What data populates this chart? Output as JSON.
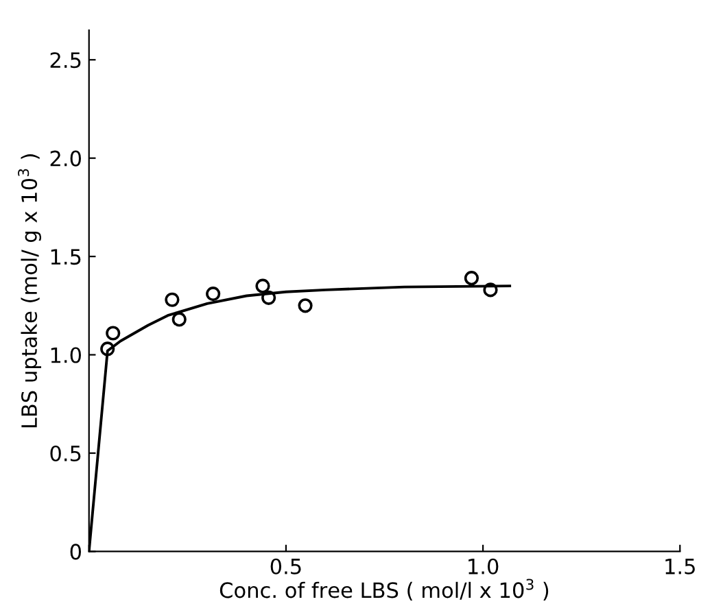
{
  "chart_data": {
    "type": "scatter",
    "xlabel": "Conc. of free LBS ( mol/l x 10$^{3}$ )",
    "ylabel": "LBS uptake (mol/ g x 10$^{3}$ )",
    "series": [
      {
        "color": "#000000",
        "marker": "circle",
        "x": [
          0.047,
          0.061,
          0.211,
          0.229,
          0.315,
          0.441,
          0.456,
          0.549,
          0.971,
          1.019
        ],
        "values": [
          1.03,
          1.11,
          1.28,
          1.18,
          1.31,
          1.35,
          1.29,
          1.25,
          1.39,
          1.33
        ]
      },
      {
        "type": "line",
        "color": "#000000",
        "marker": "none",
        "line_style": "solid",
        "x": [
          0,
          0.047,
          0.08,
          0.15,
          0.2,
          0.3,
          0.4,
          0.5,
          0.6,
          0.8,
          1.068
        ],
        "values": [
          0,
          1.02,
          1.07,
          1.15,
          1.2,
          1.26,
          1.3,
          1.32,
          1.33,
          1.345,
          1.35
        ]
      }
    ],
    "xlim": [
      0,
      1.5
    ],
    "ylim": [
      0,
      2.65
    ],
    "xticks": [
      {
        "value": 0,
        "label": null
      },
      0.5,
      {
        "value": 1.0,
        "label": "1.0"
      },
      1.5
    ],
    "yticks": [
      {
        "value": 0,
        "label": "0"
      },
      0.5,
      {
        "value": 1.0,
        "label": "1.0"
      },
      1.5,
      {
        "value": 2.0,
        "label": "2.0"
      },
      2.5
    ],
    "grid": false
  }
}
